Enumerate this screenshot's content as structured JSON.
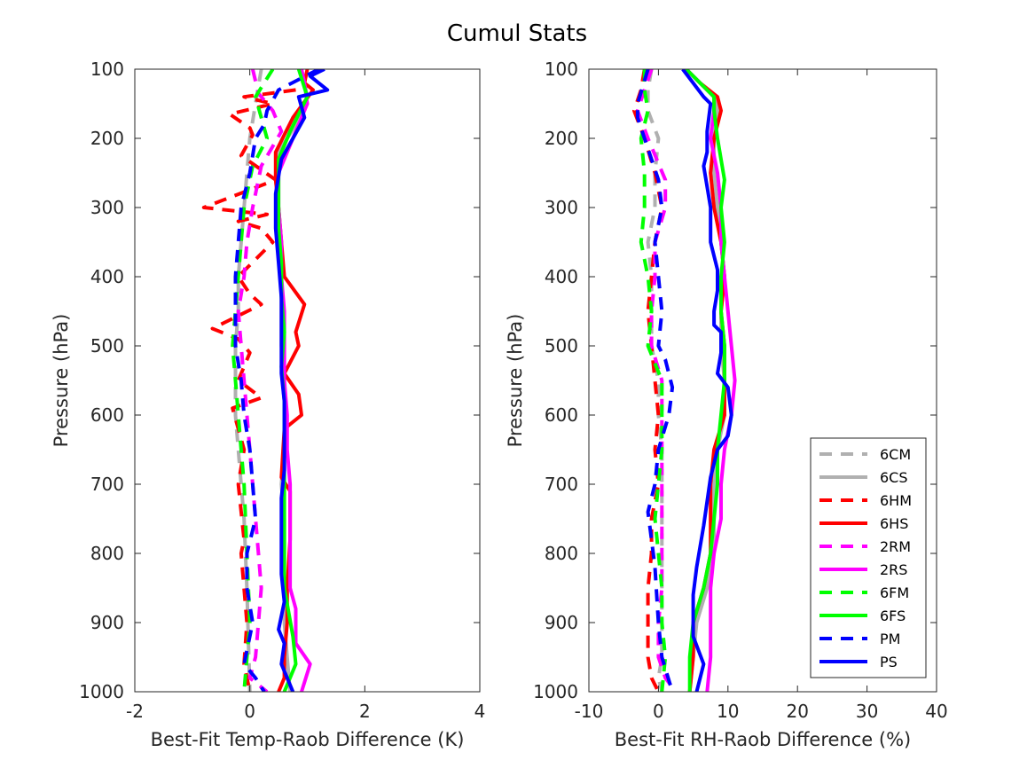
{
  "figure": {
    "title": "Cumul Stats",
    "colors": {
      "6CM": "#b0b0b0",
      "6CS": "#b0b0b0",
      "6HM": "#ff0000",
      "6HS": "#ff0000",
      "2RM": "#ff00ff",
      "2RS": "#ff00ff",
      "6FM": "#00ff00",
      "6FS": "#00ff00",
      "PM": "#0000ff",
      "PS": "#0000ff"
    }
  },
  "chart_data": [
    {
      "type": "line",
      "xlabel": "Best-Fit Temp-Raob Difference (K)",
      "ylabel": "Pressure (hPa)",
      "xlim": [
        -2,
        4
      ],
      "ylim": [
        100,
        1000
      ],
      "y_reversed": true,
      "xticks": [
        "-2",
        "0",
        "2",
        "4"
      ],
      "yticks": [
        "100",
        "200",
        "300",
        "400",
        "500",
        "600",
        "700",
        "800",
        "900",
        "1000"
      ],
      "grid": false,
      "series": [
        {
          "name": "6CM",
          "style": "dashed",
          "x": [
            0.2,
            0.1,
            0.0,
            -0.05,
            -0.1,
            -0.15,
            -0.2,
            -0.2,
            -0.25,
            -0.25,
            -0.25,
            -0.2,
            -0.15,
            -0.1,
            -0.05,
            0.0
          ],
          "y": [
            100,
            150,
            200,
            250,
            300,
            350,
            400,
            450,
            500,
            550,
            600,
            650,
            700,
            750,
            850,
            1000
          ]
        },
        {
          "name": "6CS",
          "style": "solid",
          "x": [
            0.9,
            1.0,
            0.8,
            0.5,
            0.45,
            0.5,
            0.55,
            0.55,
            0.55,
            0.55,
            0.6,
            0.6,
            0.6,
            0.55,
            0.6,
            0.6,
            0.6,
            0.6,
            0.65,
            0.7
          ],
          "y": [
            100,
            140,
            180,
            220,
            260,
            300,
            350,
            400,
            450,
            500,
            550,
            600,
            650,
            700,
            750,
            800,
            850,
            900,
            950,
            1000
          ]
        },
        {
          "name": "6HM",
          "style": "dashed",
          "x": [
            0.8,
            -0.1,
            0.4,
            -0.35,
            0.0,
            0.05,
            -0.15,
            0.45,
            -0.8,
            0.3,
            -0.2,
            0.2,
            0.4,
            -0.2,
            0.0,
            0.2,
            -0.65,
            -0.2,
            0.0,
            -0.2,
            0.2,
            -0.3,
            -0.1,
            -0.2,
            -0.1,
            -0.15,
            -0.05,
            -0.1,
            0.0
          ],
          "y": [
            130,
            140,
            150,
            165,
            185,
            195,
            225,
            260,
            300,
            310,
            320,
            330,
            350,
            400,
            425,
            440,
            475,
            490,
            510,
            550,
            575,
            590,
            650,
            700,
            780,
            800,
            900,
            960,
            1000
          ]
        },
        {
          "name": "6HS",
          "style": "solid",
          "x": [
            1.0,
            0.95,
            1.1,
            0.75,
            0.45,
            0.45,
            0.5,
            0.55,
            0.6,
            0.95,
            0.8,
            0.85,
            0.6,
            0.85,
            0.9,
            0.6,
            0.55,
            0.7,
            0.7,
            0.7,
            0.65,
            0.65,
            0.6,
            0.6,
            0.5
          ],
          "y": [
            100,
            120,
            130,
            170,
            220,
            260,
            300,
            350,
            400,
            440,
            480,
            500,
            540,
            570,
            600,
            620,
            690,
            710,
            750,
            780,
            850,
            900,
            950,
            980,
            1000
          ]
        },
        {
          "name": "2RM",
          "style": "dashed",
          "x": [
            0.05,
            0.15,
            0.4,
            0.55,
            0.2,
            0.05,
            -0.05,
            -0.1,
            -0.2,
            -0.15,
            -0.1,
            -0.05,
            0.0,
            0.05,
            0.15,
            0.2,
            0.15,
            0.1,
            0.0,
            0.3
          ],
          "y": [
            100,
            135,
            160,
            190,
            240,
            300,
            350,
            400,
            450,
            500,
            550,
            600,
            650,
            700,
            800,
            850,
            900,
            950,
            980,
            1000
          ]
        },
        {
          "name": "2RS",
          "style": "solid",
          "x": [
            0.9,
            0.95,
            1.0,
            0.75,
            0.5,
            0.5,
            0.55,
            0.55,
            0.6,
            0.6,
            0.6,
            0.65,
            0.65,
            0.7,
            0.7,
            0.7,
            0.7,
            0.8,
            0.8,
            1.05,
            0.9
          ],
          "y": [
            100,
            120,
            150,
            200,
            250,
            300,
            350,
            400,
            450,
            500,
            550,
            600,
            650,
            700,
            750,
            800,
            850,
            880,
            930,
            960,
            1000
          ]
        },
        {
          "name": "6FM",
          "style": "dashed",
          "x": [
            0.4,
            0.1,
            0.3,
            0.05,
            -0.1,
            -0.15,
            -0.2,
            -0.25,
            -0.3,
            -0.25,
            -0.2,
            -0.15,
            -0.1,
            -0.05,
            0.0,
            -0.1
          ],
          "y": [
            100,
            140,
            200,
            240,
            300,
            350,
            400,
            450,
            500,
            550,
            600,
            650,
            700,
            800,
            900,
            1000
          ]
        },
        {
          "name": "6FS",
          "style": "solid",
          "x": [
            0.85,
            1.0,
            0.7,
            0.5,
            0.5,
            0.5,
            0.55,
            0.55,
            0.6,
            0.55,
            0.6,
            0.6,
            0.6,
            0.6,
            0.6,
            0.75,
            0.8,
            0.6
          ],
          "y": [
            100,
            140,
            190,
            230,
            280,
            330,
            380,
            430,
            480,
            530,
            580,
            630,
            700,
            780,
            850,
            920,
            960,
            1000
          ]
        },
        {
          "name": "PM",
          "style": "dashed",
          "x": [
            1.2,
            0.5,
            0.3,
            0.25,
            0.1,
            0.0,
            -0.15,
            -0.2,
            -0.25,
            -0.25,
            -0.25,
            -0.15,
            -0.1,
            0.0,
            0.05,
            0.1,
            -0.05,
            -0.05,
            0.05,
            -0.1,
            0.1,
            0.25
          ],
          "y": [
            100,
            130,
            160,
            180,
            200,
            250,
            300,
            350,
            400,
            450,
            500,
            550,
            600,
            650,
            700,
            750,
            800,
            850,
            900,
            960,
            980,
            1000
          ]
        },
        {
          "name": "PS",
          "style": "solid",
          "x": [
            1.3,
            1.05,
            1.35,
            0.85,
            0.95,
            0.75,
            0.55,
            0.45,
            0.45,
            0.5,
            0.55,
            0.55,
            0.55,
            0.55,
            0.6,
            0.6,
            0.6,
            0.55,
            0.55,
            0.55,
            0.6,
            0.5,
            0.6,
            0.55,
            0.75
          ],
          "y": [
            100,
            110,
            130,
            140,
            170,
            200,
            230,
            280,
            330,
            380,
            430,
            480,
            520,
            540,
            580,
            620,
            680,
            720,
            780,
            830,
            870,
            910,
            930,
            960,
            1000
          ]
        }
      ]
    },
    {
      "type": "line",
      "xlabel": "Best-Fit RH-Raob Difference (%)",
      "ylabel": "Pressure (hPa)",
      "xlim": [
        -10,
        40
      ],
      "ylim": [
        100,
        1000
      ],
      "y_reversed": true,
      "xticks": [
        "-10",
        "0",
        "10",
        "20",
        "30",
        "40"
      ],
      "yticks": [
        "100",
        "200",
        "300",
        "400",
        "500",
        "600",
        "700",
        "800",
        "900",
        "1000"
      ],
      "grid": false,
      "legend": {
        "location": "bottom-right",
        "entries": [
          "6CM",
          "6CS",
          "6HM",
          "6HS",
          "2RM",
          "2RS",
          "6FM",
          "6FS",
          "PM",
          "PS"
        ]
      },
      "series": [
        {
          "name": "6CM",
          "style": "dashed",
          "x": [
            -1.0,
            -1.5,
            -1.5,
            0.0,
            -0.5,
            -0.5,
            -1.5,
            -1.0,
            -1.0,
            -1.0,
            0.0,
            0.0,
            0.5,
            0.5,
            0.5,
            0.5,
            0.5,
            0.5,
            0.5,
            0.0,
            0.5
          ],
          "y": [
            100,
            130,
            160,
            200,
            250,
            300,
            350,
            400,
            450,
            500,
            550,
            600,
            650,
            700,
            750,
            800,
            850,
            900,
            950,
            980,
            1000
          ]
        },
        {
          "name": "6CS",
          "style": "solid",
          "x": [
            4.0,
            6.0,
            8.0,
            8.5,
            8.0,
            8.0,
            8.5,
            9.0,
            9.5,
            9.0,
            9.0,
            9.5,
            9.5,
            8.5,
            8.0,
            8.0,
            8.0,
            7.0,
            5.5,
            5.0,
            4.5
          ],
          "y": [
            100,
            120,
            140,
            160,
            200,
            250,
            300,
            350,
            400,
            450,
            500,
            550,
            600,
            650,
            700,
            750,
            800,
            850,
            900,
            950,
            1000
          ]
        },
        {
          "name": "6HM",
          "style": "dashed",
          "x": [
            -2.0,
            -2.5,
            -3.5,
            -2.0,
            -0.5,
            0.5,
            -0.5,
            -1.0,
            -1.5,
            -1.0,
            -0.5,
            0.0,
            -0.5,
            0.0,
            -1.0,
            -1.0,
            -1.5,
            -1.5,
            -1.5,
            -1.0,
            0.0
          ],
          "y": [
            100,
            130,
            160,
            200,
            250,
            300,
            350,
            400,
            450,
            500,
            550,
            600,
            650,
            700,
            750,
            800,
            850,
            900,
            950,
            980,
            1000
          ]
        },
        {
          "name": "6HS",
          "style": "solid",
          "x": [
            4.0,
            6.0,
            8.5,
            9.0,
            8.0,
            7.5,
            8.0,
            9.0,
            9.5,
            9.0,
            9.5,
            9.5,
            9.5,
            8.0,
            7.5,
            7.5,
            7.5,
            6.5,
            5.0,
            5.0,
            4.5
          ],
          "y": [
            100,
            120,
            140,
            160,
            200,
            250,
            300,
            350,
            400,
            450,
            500,
            550,
            600,
            650,
            700,
            750,
            800,
            850,
            900,
            950,
            1000
          ]
        },
        {
          "name": "2RM",
          "style": "dashed",
          "x": [
            -1.0,
            -2.0,
            -3.0,
            -1.5,
            1.0,
            1.0,
            -0.5,
            -0.5,
            -1.0,
            -1.0,
            0.5,
            0.5,
            0.5,
            0.5,
            0.5,
            0.5,
            0.5,
            0.0,
            0.0,
            1.0,
            2.5
          ],
          "y": [
            100,
            130,
            160,
            200,
            260,
            300,
            350,
            400,
            450,
            500,
            550,
            600,
            650,
            700,
            750,
            800,
            850,
            900,
            950,
            980,
            1000
          ]
        },
        {
          "name": "2RS",
          "style": "solid",
          "x": [
            4.0,
            6.0,
            8.0,
            8.0,
            7.5,
            8.5,
            9.0,
            9.0,
            9.5,
            10.0,
            10.5,
            11.0,
            10.5,
            9.5,
            9.0,
            9.0,
            8.0,
            7.5,
            7.5,
            7.5,
            7.0
          ],
          "y": [
            100,
            120,
            140,
            160,
            200,
            250,
            300,
            350,
            400,
            450,
            500,
            550,
            600,
            650,
            700,
            750,
            800,
            850,
            900,
            950,
            1000
          ]
        },
        {
          "name": "6FM",
          "style": "dashed",
          "x": [
            -2.0,
            -2.0,
            -1.5,
            -2.5,
            -2.0,
            -2.0,
            -2.5,
            -1.5,
            -1.0,
            -1.5,
            0.5,
            0.5,
            0.5,
            0.0,
            -0.5,
            0.0,
            0.5,
            0.5,
            1.0,
            0.5
          ],
          "y": [
            100,
            130,
            160,
            200,
            250,
            300,
            350,
            400,
            450,
            500,
            550,
            600,
            650,
            700,
            750,
            800,
            850,
            900,
            950,
            1000
          ]
        },
        {
          "name": "6FS",
          "style": "solid",
          "x": [
            4.0,
            6.0,
            8.0,
            8.0,
            8.5,
            9.5,
            9.0,
            9.5,
            9.0,
            9.0,
            9.5,
            9.5,
            9.0,
            8.5,
            8.5,
            8.0,
            7.5,
            6.5,
            5.0,
            4.5,
            4.5
          ],
          "y": [
            100,
            120,
            140,
            160,
            200,
            260,
            300,
            350,
            400,
            450,
            500,
            550,
            600,
            650,
            700,
            750,
            800,
            850,
            900,
            950,
            1000
          ]
        },
        {
          "name": "PM",
          "style": "dashed",
          "x": [
            -1.5,
            -3.0,
            -3.0,
            -2.0,
            0.0,
            0.5,
            -0.5,
            0.0,
            0.5,
            0.0,
            1.0,
            2.0,
            1.5,
            0.0,
            -0.5,
            -1.5,
            -1.0,
            -0.5,
            0.0,
            0.5,
            2.0
          ],
          "y": [
            100,
            150,
            170,
            200,
            260,
            300,
            350,
            400,
            450,
            500,
            520,
            560,
            600,
            650,
            700,
            740,
            780,
            820,
            900,
            950,
            1000
          ]
        },
        {
          "name": "PS",
          "style": "solid",
          "x": [
            3.5,
            6.5,
            7.5,
            7.0,
            7.0,
            6.5,
            7.0,
            7.5,
            7.5,
            8.5,
            8.5,
            8.0,
            8.0,
            9.0,
            9.0,
            8.5,
            10.0,
            10.5,
            10.0,
            8.5,
            7.5,
            6.5,
            5.5,
            5.0,
            5.0,
            6.5,
            5.5
          ],
          "y": [
            100,
            140,
            150,
            190,
            220,
            240,
            270,
            300,
            350,
            390,
            420,
            450,
            470,
            480,
            510,
            540,
            560,
            600,
            630,
            650,
            690,
            760,
            820,
            860,
            920,
            960,
            1000
          ]
        }
      ]
    }
  ]
}
